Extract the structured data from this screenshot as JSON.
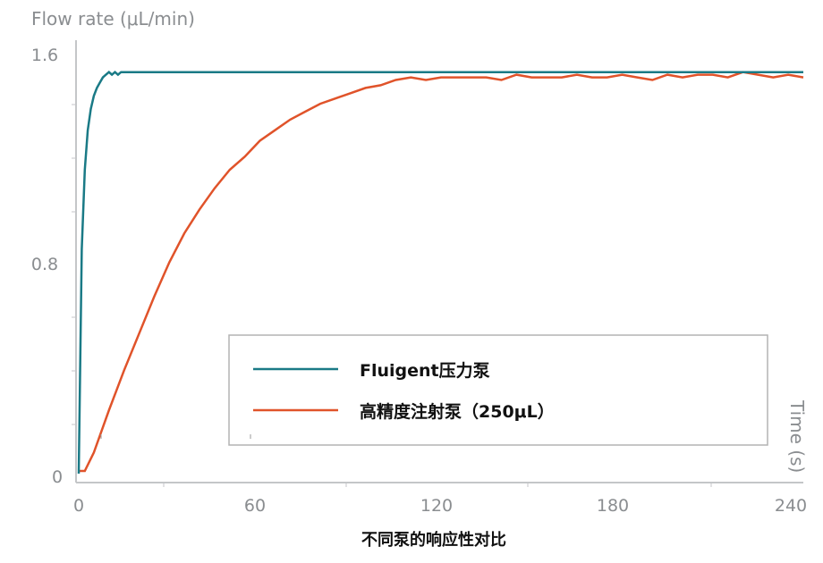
{
  "chart_data": {
    "type": "line",
    "ylabel": "Flow rate (μL/min)",
    "xlabel": "Time (s)",
    "xlim": [
      0,
      240
    ],
    "ylim": [
      0,
      1.6
    ],
    "xticks": [
      "0",
      "60",
      "120",
      "180",
      "240"
    ],
    "yticks": [
      "0",
      "0.8",
      "1.6"
    ],
    "grid": false,
    "legend_position": "lower-right",
    "caption": "不同泵的响应性对比",
    "series": [
      {
        "name": "Fluigent压力泵",
        "color": "#1a7a86",
        "x": [
          0,
          1,
          2,
          3,
          4,
          5,
          6,
          7,
          8,
          9,
          10,
          11,
          12,
          13,
          14,
          15,
          20,
          40,
          80,
          120,
          160,
          200,
          240
        ],
        "y": [
          0,
          0.85,
          1.15,
          1.3,
          1.38,
          1.43,
          1.46,
          1.48,
          1.5,
          1.51,
          1.52,
          1.51,
          1.52,
          1.51,
          1.52,
          1.52,
          1.52,
          1.52,
          1.52,
          1.52,
          1.52,
          1.52,
          1.52
        ]
      },
      {
        "name": "高精度注射泵（250μL）",
        "color": "#e0532a",
        "x": [
          0,
          2,
          5,
          10,
          15,
          20,
          25,
          30,
          35,
          40,
          45,
          50,
          55,
          60,
          65,
          70,
          75,
          80,
          85,
          90,
          95,
          100,
          105,
          110,
          115,
          120,
          125,
          130,
          135,
          140,
          145,
          150,
          155,
          160,
          165,
          170,
          175,
          180,
          185,
          190,
          195,
          200,
          205,
          210,
          215,
          220,
          225,
          230,
          235,
          240
        ],
        "y": [
          0.01,
          0.01,
          0.08,
          0.24,
          0.39,
          0.53,
          0.67,
          0.8,
          0.91,
          1.0,
          1.08,
          1.15,
          1.2,
          1.26,
          1.3,
          1.34,
          1.37,
          1.4,
          1.42,
          1.44,
          1.46,
          1.47,
          1.49,
          1.5,
          1.49,
          1.5,
          1.5,
          1.5,
          1.5,
          1.49,
          1.51,
          1.5,
          1.5,
          1.5,
          1.51,
          1.5,
          1.5,
          1.51,
          1.5,
          1.49,
          1.51,
          1.5,
          1.51,
          1.51,
          1.5,
          1.52,
          1.51,
          1.5,
          1.51,
          1.5
        ]
      }
    ]
  }
}
